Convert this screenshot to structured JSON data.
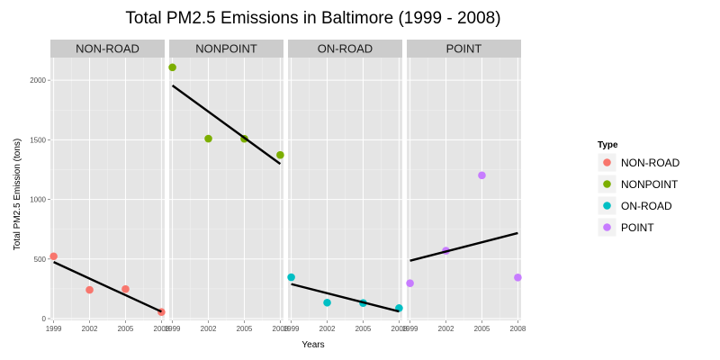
{
  "chart_data": {
    "type": "scatter",
    "title": "Total PM2.5 Emissions in Baltimore (1999 - 2008)",
    "xlabel": "Years",
    "ylabel": "Total PM2.5 Emission (tons)",
    "x_ticks": [
      1999,
      2002,
      2005,
      2008
    ],
    "y_ticks": [
      0,
      500,
      1000,
      1500,
      2000
    ],
    "ylim": [
      -15,
      2190
    ],
    "grid": true,
    "legend": {
      "title": "Type",
      "position": "right",
      "entries": [
        "NON-ROAD",
        "NONPOINT",
        "ON-ROAD",
        "POINT"
      ]
    },
    "facets": [
      {
        "name": "NON-ROAD",
        "color": "#F8766D",
        "points": [
          [
            1999,
            523
          ],
          [
            2002,
            241
          ],
          [
            2005,
            248
          ],
          [
            2008,
            55
          ]
        ],
        "trend": [
          [
            1999,
            475
          ],
          [
            2008,
            58
          ]
        ]
      },
      {
        "name": "NONPOINT",
        "color": "#7CAE00",
        "points": [
          [
            1999,
            2108
          ],
          [
            2002,
            1510
          ],
          [
            2005,
            1509
          ],
          [
            2008,
            1373
          ]
        ],
        "trend": [
          [
            1999,
            1956
          ],
          [
            2008,
            1298
          ]
        ]
      },
      {
        "name": "ON-ROAD",
        "color": "#00BFC4",
        "points": [
          [
            1999,
            347
          ],
          [
            2002,
            134
          ],
          [
            2005,
            131
          ],
          [
            2008,
            88
          ]
        ],
        "trend": [
          [
            1999,
            290
          ],
          [
            2008,
            60
          ]
        ]
      },
      {
        "name": "POINT",
        "color": "#C77CFF",
        "points": [
          [
            1999,
            297
          ],
          [
            2002,
            570
          ],
          [
            2005,
            1202
          ],
          [
            2008,
            345
          ]
        ],
        "trend": [
          [
            1999,
            486
          ],
          [
            2008,
            718
          ]
        ]
      }
    ]
  }
}
